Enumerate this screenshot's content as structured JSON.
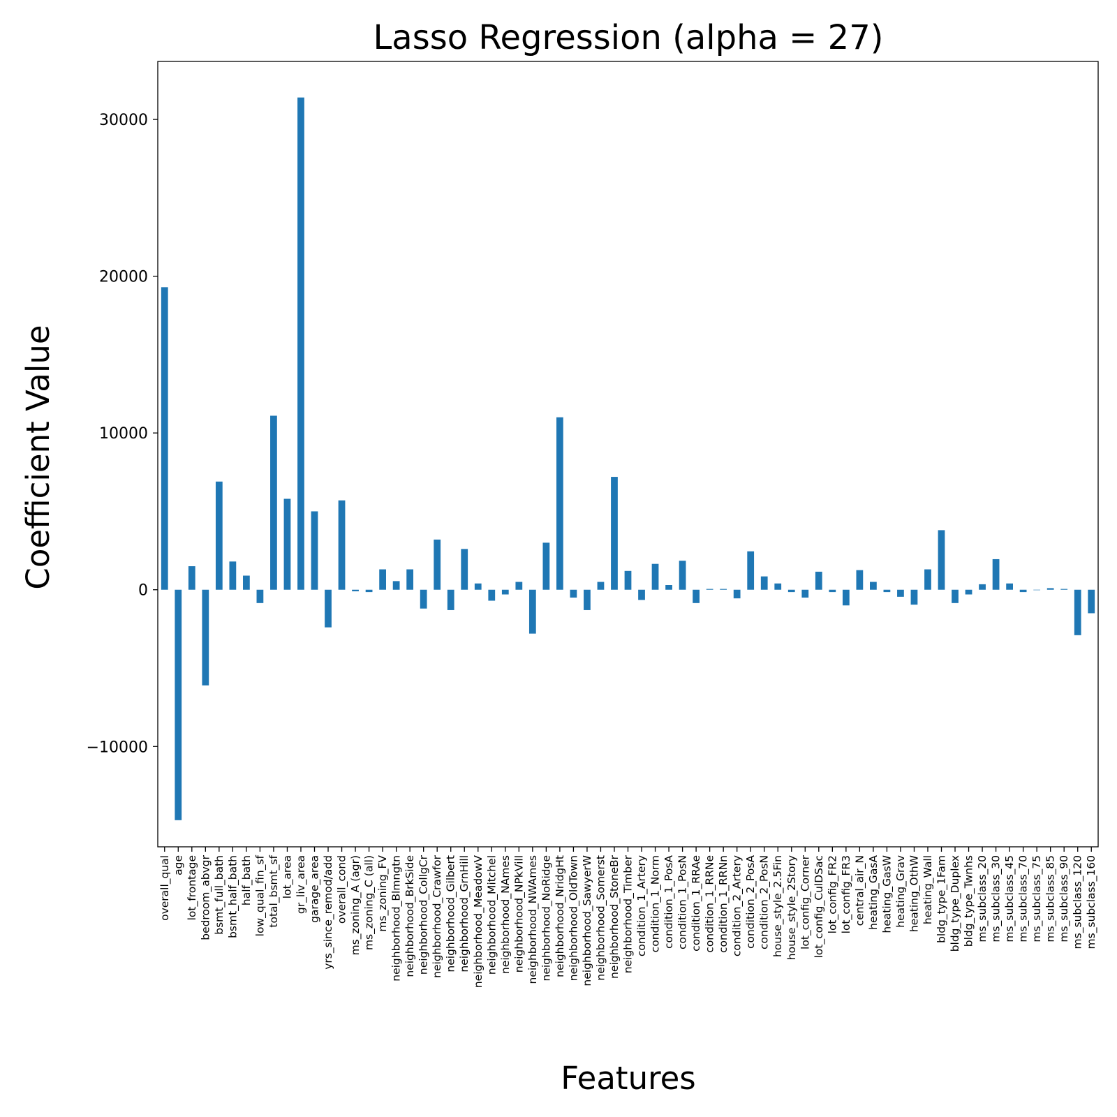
{
  "chart_data": {
    "type": "bar",
    "title": "Lasso Regression (alpha = 27)",
    "xlabel": "Features",
    "ylabel": "Coefficient Value",
    "ylim": [
      -16400,
      33700
    ],
    "yticks": [
      -10000,
      0,
      10000,
      20000,
      30000
    ],
    "ytick_labels": [
      "−10000",
      "0",
      "10000",
      "20000",
      "30000"
    ],
    "grid": false,
    "legend": "none",
    "bar_color": "#1f77b4",
    "categories": [
      "overall_qual",
      "age",
      "lot_frontage",
      "bedroom_abvgr",
      "bsmt_full_bath",
      "bsmt_half_bath",
      "half_bath",
      "low_qual_fin_sf",
      "total_bsmt_sf",
      "lot_area",
      "gr_liv_area",
      "garage_area",
      "yrs_since_remod/add",
      "overall_cond",
      "ms_zoning_A (agr)",
      "ms_zoning_C (all)",
      "ms_zoning_FV",
      "neighborhood_Blmngtn",
      "neighborhood_BrkSide",
      "neighborhood_CollgCr",
      "neighborhood_Crawfor",
      "neighborhood_Gilbert",
      "neighborhood_GrnHill",
      "neighborhood_MeadowV",
      "neighborhood_Mitchel",
      "neighborhood_NAmes",
      "neighborhood_NPkVill",
      "neighborhood_NWAmes",
      "neighborhood_NoRidge",
      "neighborhood_NridgHt",
      "neighborhood_OldTown",
      "neighborhood_SawyerW",
      "neighborhood_Somerst",
      "neighborhood_StoneBr",
      "neighborhood_Timber",
      "condition_1_Artery",
      "condition_1_Norm",
      "condition_1_PosA",
      "condition_1_PosN",
      "condition_1_RRAe",
      "condition_1_RRNe",
      "condition_1_RRNn",
      "condition_2_Artery",
      "condition_2_PosA",
      "condition_2_PosN",
      "house_style_2.5Fin",
      "house_style_2Story",
      "lot_config_Corner",
      "lot_config_CulDSac",
      "lot_config_FR2",
      "lot_config_FR3",
      "central_air_N",
      "heating_GasA",
      "heating_GasW",
      "heating_Grav",
      "heating_OthW",
      "heating_Wall",
      "bldg_type_1Fam",
      "bldg_type_Duplex",
      "bldg_type_Twnhs",
      "ms_subclass_20",
      "ms_subclass_30",
      "ms_subclass_45",
      "ms_subclass_70",
      "ms_subclass_75",
      "ms_subclass_85",
      "ms_subclass_90",
      "ms_subclass_120",
      "ms_subclass_160"
    ],
    "values": [
      19300,
      -14700,
      1500,
      -6100,
      6900,
      1800,
      900,
      -850,
      11100,
      5800,
      31400,
      5000,
      -2400,
      5700,
      -100,
      -150,
      1300,
      550,
      1300,
      -1200,
      3200,
      -1300,
      2600,
      400,
      -700,
      -300,
      500,
      -2800,
      3000,
      11000,
      -500,
      -1300,
      500,
      7200,
      1200,
      -650,
      1650,
      300,
      1850,
      -850,
      50,
      50,
      -550,
      2450,
      850,
      400,
      -150,
      -500,
      1150,
      -150,
      -1000,
      1250,
      500,
      -150,
      -450,
      -950,
      1300,
      3800,
      -850,
      -300,
      350,
      1950,
      400,
      -150,
      0,
      100,
      50,
      -2900,
      -1500
    ]
  }
}
